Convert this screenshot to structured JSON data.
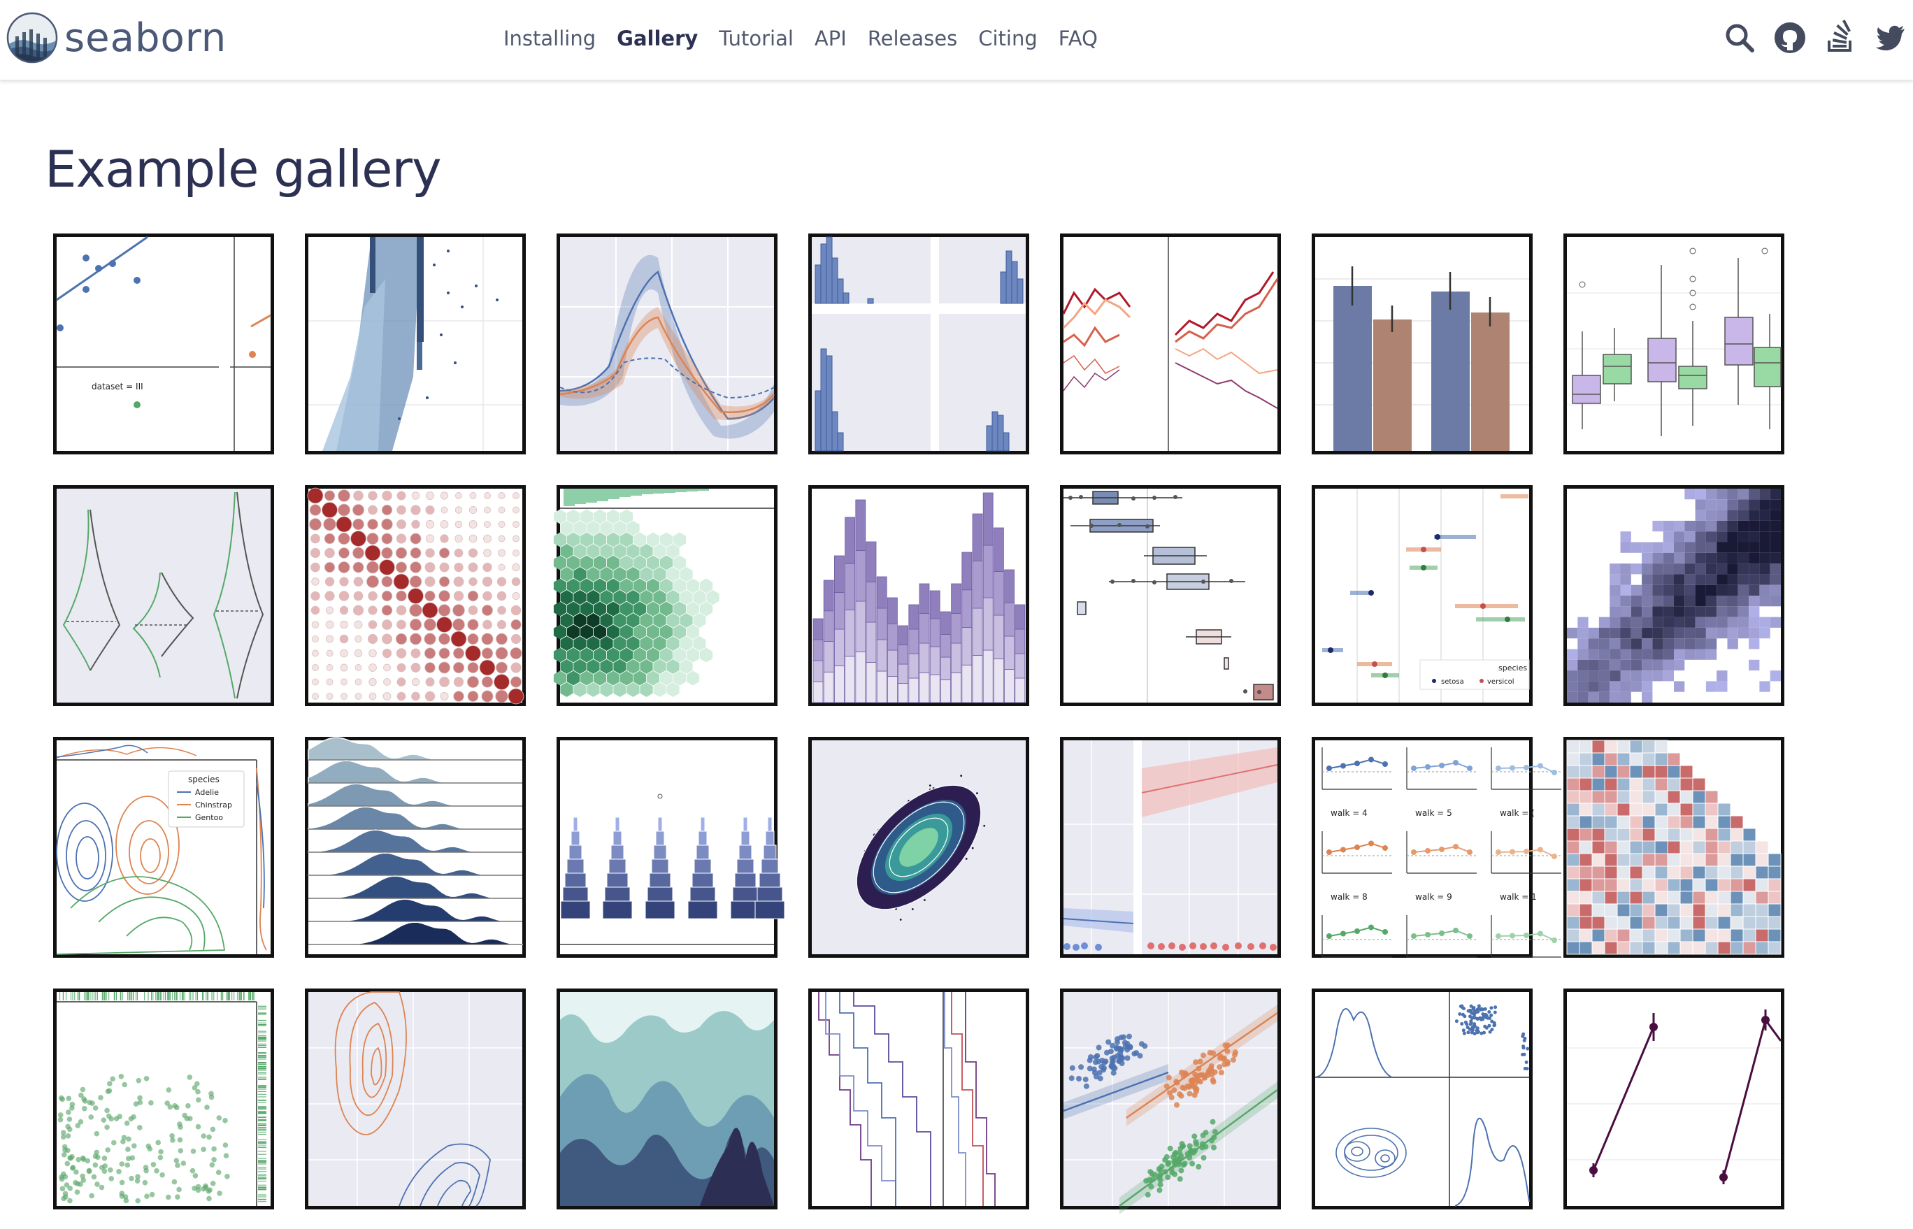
{
  "navbar": {
    "brand": "seaborn",
    "links": [
      "Installing",
      "Gallery",
      "Tutorial",
      "API",
      "Releases",
      "Citing",
      "FAQ"
    ],
    "active_link": "Gallery",
    "icons": [
      "search-icon",
      "github-icon",
      "stackoverflow-icon",
      "twitter-icon"
    ]
  },
  "page": {
    "title": "Example gallery"
  },
  "gallery": {
    "thumb_labels": {
      "anscombe": "dataset = III",
      "penguin_legend_title": "species",
      "penguin_legend": [
        "Adelie",
        "Chinstrap",
        "Gentoo"
      ],
      "iris_legend_title": "species",
      "iris_legend": [
        "setosa",
        "versicol"
      ],
      "walk_panels": [
        "walk = 4",
        "walk = 5",
        "walk = (",
        "walk = 8",
        "walk = 9",
        "walk = 1"
      ]
    }
  },
  "colors": {
    "title": "#2c3052",
    "nav_text": "#515a6e",
    "brand": "#4b5877",
    "thumb_border": "#111111",
    "seaborn_blue": "#4c72b0",
    "seaborn_orange": "#dd8452",
    "seaborn_green": "#55a868",
    "seaborn_red": "#c44e52",
    "plot_bg": "#eaeaf2"
  }
}
